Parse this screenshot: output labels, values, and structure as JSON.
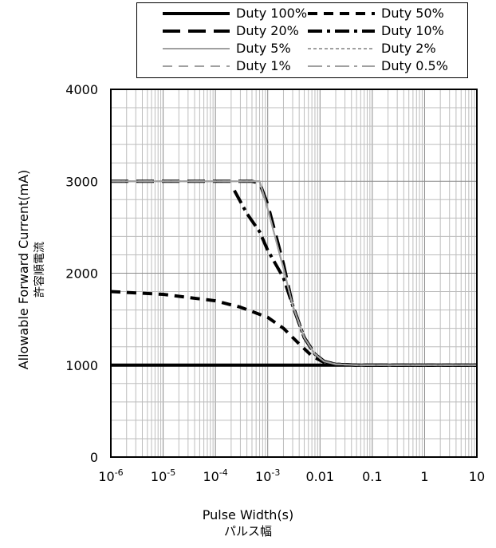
{
  "chart_data": {
    "type": "line",
    "xscale": "log",
    "xlim": [
      1e-06,
      10
    ],
    "ylim": [
      0,
      4000
    ],
    "grid": true,
    "legend_position": "top",
    "xlabel": "Pulse Width(s)",
    "xlabel_sub": "パルス幅",
    "ylabel": "Allowable  Forward Current(mA)",
    "ylabel_sub": "許容順電流",
    "x_tick_labels": [
      {
        "base": "10",
        "exp": "-6"
      },
      {
        "base": "10",
        "exp": "-5"
      },
      {
        "base": "10",
        "exp": "-4"
      },
      {
        "base": "10",
        "exp": "-3"
      },
      {
        "base": "0.01",
        "exp": ""
      },
      {
        "base": "0.1",
        "exp": ""
      },
      {
        "base": "1",
        "exp": ""
      },
      {
        "base": "10",
        "exp": ""
      }
    ],
    "y_tick_labels": [
      "0",
      "1000",
      "2000",
      "3000",
      "4000"
    ],
    "y_ticks": [
      0,
      1000,
      2000,
      3000,
      4000
    ],
    "series": [
      {
        "name": "Duty 100%",
        "color": "#000000",
        "dash": "solid",
        "width": 4,
        "points": [
          [
            1e-06,
            1000
          ],
          [
            10,
            1000
          ]
        ]
      },
      {
        "name": "Duty 50%",
        "color": "#000000",
        "dash": "dash",
        "width": 4,
        "points": [
          [
            1e-06,
            1800
          ],
          [
            1e-05,
            1770
          ],
          [
            0.0001,
            1700
          ],
          [
            0.0003,
            1630
          ],
          [
            0.001,
            1520
          ],
          [
            0.002,
            1400
          ],
          [
            0.004,
            1230
          ],
          [
            0.007,
            1100
          ],
          [
            0.012,
            1030
          ],
          [
            0.02,
            1010
          ],
          [
            0.05,
            1000
          ],
          [
            10,
            1000
          ]
        ]
      },
      {
        "name": "Duty 20%",
        "color": "#000000",
        "dash": "longdash",
        "width": 4,
        "points": [
          [
            1e-06,
            3000
          ],
          [
            0.0005,
            3000
          ],
          [
            0.0007,
            2980
          ],
          [
            0.001,
            2750
          ],
          [
            0.002,
            2100
          ],
          [
            0.003,
            1650
          ],
          [
            0.005,
            1300
          ],
          [
            0.008,
            1120
          ],
          [
            0.012,
            1040
          ],
          [
            0.02,
            1010
          ],
          [
            0.05,
            1000
          ],
          [
            10,
            1000
          ]
        ]
      },
      {
        "name": "Duty 10%",
        "color": "#000000",
        "dash": "dashdot",
        "width": 4,
        "points": [
          [
            0.00023,
            2900
          ],
          [
            0.0004,
            2650
          ],
          [
            0.0007,
            2450
          ],
          [
            0.001,
            2250
          ],
          [
            0.002,
            1950
          ],
          [
            0.003,
            1650
          ],
          [
            0.005,
            1300
          ],
          [
            0.008,
            1120
          ],
          [
            0.012,
            1040
          ],
          [
            0.02,
            1010
          ],
          [
            0.05,
            1000
          ],
          [
            10,
            1000
          ]
        ]
      },
      {
        "name": "Duty 5%",
        "color": "#a0a0a0",
        "dash": "solid",
        "width": 2,
        "points": [
          [
            1e-06,
            3000
          ],
          [
            0.0007,
            3000
          ],
          [
            0.001,
            2700
          ],
          [
            0.002,
            2050
          ],
          [
            0.003,
            1650
          ],
          [
            0.005,
            1300
          ],
          [
            0.008,
            1120
          ],
          [
            0.012,
            1040
          ],
          [
            0.02,
            1010
          ],
          [
            0.05,
            1000
          ],
          [
            10,
            1000
          ]
        ]
      },
      {
        "name": "Duty 2%",
        "color": "#a0a0a0",
        "dash": "dot",
        "width": 2,
        "points": [
          [
            1e-06,
            3000
          ],
          [
            0.0007,
            3000
          ],
          [
            0.001,
            2700
          ],
          [
            0.002,
            2050
          ],
          [
            0.003,
            1650
          ],
          [
            0.005,
            1300
          ],
          [
            0.008,
            1120
          ],
          [
            0.012,
            1040
          ],
          [
            0.02,
            1010
          ],
          [
            0.05,
            1000
          ],
          [
            10,
            1000
          ]
        ]
      },
      {
        "name": "Duty 1%",
        "color": "#a0a0a0",
        "dash": "dash",
        "width": 2,
        "points": [
          [
            1e-06,
            3000
          ],
          [
            0.0007,
            3000
          ],
          [
            0.001,
            2700
          ],
          [
            0.002,
            2050
          ],
          [
            0.003,
            1650
          ],
          [
            0.005,
            1300
          ],
          [
            0.008,
            1120
          ],
          [
            0.012,
            1040
          ],
          [
            0.02,
            1010
          ],
          [
            0.05,
            1000
          ],
          [
            10,
            1000
          ]
        ]
      },
      {
        "name": "Duty 0.5%",
        "color": "#a0a0a0",
        "dash": "dashdot",
        "width": 2,
        "points": [
          [
            1e-06,
            3000
          ],
          [
            0.0007,
            3000
          ],
          [
            0.001,
            2700
          ],
          [
            0.002,
            2050
          ],
          [
            0.003,
            1650
          ],
          [
            0.005,
            1300
          ],
          [
            0.008,
            1120
          ],
          [
            0.012,
            1040
          ],
          [
            0.02,
            1010
          ],
          [
            0.05,
            1000
          ],
          [
            10,
            1000
          ]
        ]
      }
    ]
  }
}
